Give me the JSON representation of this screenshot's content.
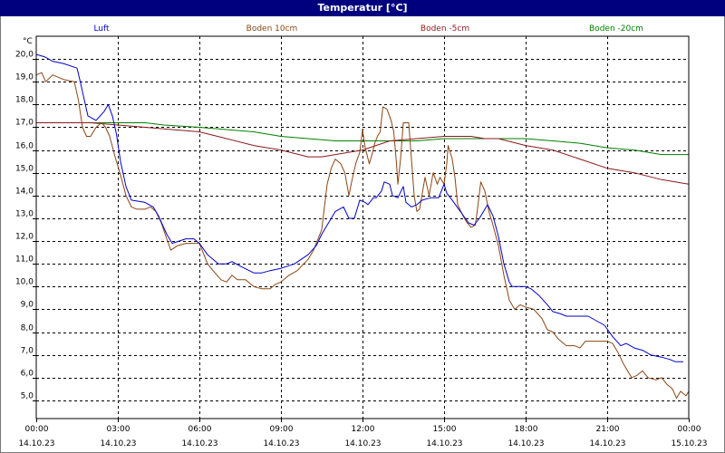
{
  "window": {
    "title": "Temperatur [°C]"
  },
  "chart_data": {
    "type": "line",
    "title": "Temperatur [°C]",
    "ylabel": "°C",
    "xlabel": "",
    "ylim": [
      4.2,
      21.0
    ],
    "xlim_hours": [
      0,
      24
    ],
    "grid": true,
    "legend_position": "top",
    "x_ticks": [
      {
        "time": "00:00",
        "date": "14.10.23"
      },
      {
        "time": "03:00",
        "date": "14.10.23"
      },
      {
        "time": "06:00",
        "date": "14.10.23"
      },
      {
        "time": "09:00",
        "date": "14.10.23"
      },
      {
        "time": "12:00",
        "date": "14.10.23"
      },
      {
        "time": "15:00",
        "date": "14.10.23"
      },
      {
        "time": "18:00",
        "date": "14.10.23"
      },
      {
        "time": "21:00",
        "date": "14.10.23"
      },
      {
        "time": "00:00",
        "date": "15.10.23"
      }
    ],
    "y_ticks": [
      "5,0",
      "6,0",
      "7,0",
      "8,0",
      "9,0",
      "10,0",
      "11,0",
      "12,0",
      "13,0",
      "14,0",
      "15,0",
      "16,0",
      "17,0",
      "18,0",
      "19,0",
      "20,0"
    ],
    "series": [
      {
        "name": "Luft",
        "color": "#0000cc",
        "points": [
          [
            0,
            20.2
          ],
          [
            0.3,
            20.1
          ],
          [
            0.6,
            19.9
          ],
          [
            1.0,
            19.8
          ],
          [
            1.5,
            19.6
          ],
          [
            1.6,
            19.1
          ],
          [
            1.75,
            18.3
          ],
          [
            1.9,
            17.5
          ],
          [
            2.2,
            17.3
          ],
          [
            2.5,
            17.7
          ],
          [
            2.65,
            18.0
          ],
          [
            2.8,
            17.5
          ],
          [
            2.95,
            16.7
          ],
          [
            3.1,
            15.5
          ],
          [
            3.3,
            14.4
          ],
          [
            3.5,
            13.8
          ],
          [
            4.0,
            13.7
          ],
          [
            4.3,
            13.5
          ],
          [
            4.5,
            13.1
          ],
          [
            4.8,
            12.3
          ],
          [
            5.0,
            11.9
          ],
          [
            5.5,
            12.1
          ],
          [
            5.8,
            12.1
          ],
          [
            6.0,
            11.9
          ],
          [
            6.3,
            11.4
          ],
          [
            6.7,
            11.0
          ],
          [
            7.0,
            11.0
          ],
          [
            7.2,
            11.1
          ],
          [
            7.5,
            10.9
          ],
          [
            8.0,
            10.6
          ],
          [
            8.3,
            10.6
          ],
          [
            8.6,
            10.7
          ],
          [
            9.0,
            10.8
          ],
          [
            9.5,
            11.0
          ],
          [
            10.0,
            11.4
          ],
          [
            10.3,
            11.8
          ],
          [
            10.5,
            12.3
          ],
          [
            10.8,
            12.9
          ],
          [
            11.0,
            13.3
          ],
          [
            11.3,
            13.5
          ],
          [
            11.5,
            13.0
          ],
          [
            11.7,
            13.0
          ],
          [
            11.9,
            13.8
          ],
          [
            12.1,
            13.7
          ],
          [
            12.2,
            13.6
          ],
          [
            12.4,
            13.9
          ],
          [
            12.5,
            13.9
          ],
          [
            12.7,
            14.2
          ],
          [
            12.8,
            14.6
          ],
          [
            13.0,
            14.5
          ],
          [
            13.1,
            14.0
          ],
          [
            13.3,
            13.9
          ],
          [
            13.5,
            14.4
          ],
          [
            13.6,
            13.7
          ],
          [
            13.8,
            13.5
          ],
          [
            14.0,
            13.6
          ],
          [
            14.2,
            13.8
          ],
          [
            14.5,
            13.9
          ],
          [
            14.8,
            13.9
          ],
          [
            15.0,
            14.5
          ],
          [
            15.1,
            14.1
          ],
          [
            15.3,
            13.8
          ],
          [
            15.6,
            13.3
          ],
          [
            15.9,
            12.8
          ],
          [
            16.1,
            12.7
          ],
          [
            16.3,
            13.0
          ],
          [
            16.6,
            13.6
          ],
          [
            16.8,
            13.1
          ],
          [
            17.0,
            12.2
          ],
          [
            17.2,
            11.0
          ],
          [
            17.4,
            10.2
          ],
          [
            17.5,
            10.0
          ],
          [
            18.0,
            10.0
          ],
          [
            18.2,
            9.9
          ],
          [
            18.5,
            9.6
          ],
          [
            18.8,
            9.2
          ],
          [
            19.0,
            8.9
          ],
          [
            19.3,
            8.8
          ],
          [
            19.5,
            8.7
          ],
          [
            20.0,
            8.7
          ],
          [
            20.3,
            8.7
          ],
          [
            20.6,
            8.5
          ],
          [
            20.9,
            8.3
          ],
          [
            21.2,
            7.8
          ],
          [
            21.5,
            7.4
          ],
          [
            21.7,
            7.5
          ],
          [
            22.0,
            7.3
          ],
          [
            22.3,
            7.2
          ],
          [
            22.6,
            7.0
          ],
          [
            23.0,
            6.9
          ],
          [
            23.3,
            6.8
          ],
          [
            23.5,
            6.7
          ],
          [
            23.8,
            6.7
          ]
        ]
      },
      {
        "name": "Boden 10cm",
        "color": "#8b4513",
        "points": [
          [
            0,
            19.3
          ],
          [
            0.2,
            19.4
          ],
          [
            0.35,
            19.0
          ],
          [
            0.6,
            19.3
          ],
          [
            1.0,
            19.1
          ],
          [
            1.4,
            19.0
          ],
          [
            1.55,
            18.2
          ],
          [
            1.7,
            17.0
          ],
          [
            1.85,
            16.6
          ],
          [
            2.0,
            16.6
          ],
          [
            2.2,
            17.0
          ],
          [
            2.4,
            17.2
          ],
          [
            2.55,
            17.0
          ],
          [
            2.7,
            16.6
          ],
          [
            2.9,
            15.7
          ],
          [
            3.1,
            14.9
          ],
          [
            3.3,
            14.0
          ],
          [
            3.5,
            13.5
          ],
          [
            3.7,
            13.4
          ],
          [
            4.0,
            13.4
          ],
          [
            4.2,
            13.5
          ],
          [
            4.4,
            13.3
          ],
          [
            4.6,
            12.8
          ],
          [
            4.8,
            12.1
          ],
          [
            4.95,
            11.6
          ],
          [
            5.2,
            11.8
          ],
          [
            5.5,
            11.9
          ],
          [
            6.0,
            11.9
          ],
          [
            6.1,
            11.6
          ],
          [
            6.3,
            11.0
          ],
          [
            6.5,
            10.7
          ],
          [
            6.8,
            10.3
          ],
          [
            7.0,
            10.2
          ],
          [
            7.2,
            10.5
          ],
          [
            7.4,
            10.3
          ],
          [
            7.7,
            10.3
          ],
          [
            8.0,
            10.0
          ],
          [
            8.3,
            9.9
          ],
          [
            8.6,
            9.9
          ],
          [
            8.8,
            10.1
          ],
          [
            9.0,
            10.2
          ],
          [
            9.3,
            10.5
          ],
          [
            9.6,
            10.7
          ],
          [
            10.0,
            11.2
          ],
          [
            10.2,
            11.6
          ],
          [
            10.5,
            12.5
          ],
          [
            10.6,
            13.5
          ],
          [
            10.7,
            14.5
          ],
          [
            10.85,
            15.2
          ],
          [
            11.0,
            15.6
          ],
          [
            11.2,
            15.4
          ],
          [
            11.35,
            15.0
          ],
          [
            11.5,
            14.0
          ],
          [
            11.6,
            14.6
          ],
          [
            11.75,
            15.4
          ],
          [
            11.9,
            15.9
          ],
          [
            12.0,
            16.9
          ],
          [
            12.1,
            16.1
          ],
          [
            12.25,
            15.4
          ],
          [
            12.35,
            15.8
          ],
          [
            12.45,
            16.3
          ],
          [
            12.55,
            16.6
          ],
          [
            12.65,
            16.8
          ],
          [
            12.75,
            17.9
          ],
          [
            12.9,
            17.8
          ],
          [
            13.05,
            17.3
          ],
          [
            13.15,
            16.8
          ],
          [
            13.25,
            15.4
          ],
          [
            13.3,
            14.5
          ],
          [
            13.4,
            15.6
          ],
          [
            13.5,
            17.2
          ],
          [
            13.7,
            17.2
          ],
          [
            13.8,
            15.6
          ],
          [
            13.9,
            14.0
          ],
          [
            14.0,
            13.3
          ],
          [
            14.1,
            13.4
          ],
          [
            14.2,
            14.1
          ],
          [
            14.3,
            14.8
          ],
          [
            14.45,
            14.0
          ],
          [
            14.6,
            15.0
          ],
          [
            14.75,
            14.5
          ],
          [
            14.85,
            14.8
          ],
          [
            15.0,
            14.5
          ],
          [
            15.1,
            15.4
          ],
          [
            15.15,
            16.2
          ],
          [
            15.3,
            15.6
          ],
          [
            15.4,
            14.8
          ],
          [
            15.5,
            13.6
          ],
          [
            15.7,
            13.1
          ],
          [
            15.85,
            12.8
          ],
          [
            16.0,
            12.6
          ],
          [
            16.15,
            12.7
          ],
          [
            16.25,
            13.6
          ],
          [
            16.35,
            14.6
          ],
          [
            16.5,
            14.2
          ],
          [
            16.65,
            13.3
          ],
          [
            16.8,
            12.7
          ],
          [
            17.0,
            11.8
          ],
          [
            17.2,
            10.5
          ],
          [
            17.4,
            9.4
          ],
          [
            17.6,
            9.0
          ],
          [
            17.8,
            9.2
          ],
          [
            18.0,
            9.1
          ],
          [
            18.3,
            9.0
          ],
          [
            18.6,
            8.6
          ],
          [
            18.8,
            8.1
          ],
          [
            19.0,
            8.0
          ],
          [
            19.2,
            7.7
          ],
          [
            19.5,
            7.4
          ],
          [
            19.8,
            7.4
          ],
          [
            20.0,
            7.3
          ],
          [
            20.2,
            7.6
          ],
          [
            20.5,
            7.6
          ],
          [
            21.0,
            7.6
          ],
          [
            21.2,
            7.5
          ],
          [
            21.4,
            7.1
          ],
          [
            21.6,
            6.6
          ],
          [
            21.8,
            6.2
          ],
          [
            21.9,
            6.0
          ],
          [
            22.1,
            6.1
          ],
          [
            22.3,
            6.3
          ],
          [
            22.5,
            6.0
          ],
          [
            22.8,
            5.9
          ],
          [
            23.0,
            6.0
          ],
          [
            23.2,
            5.7
          ],
          [
            23.4,
            5.5
          ],
          [
            23.55,
            5.1
          ],
          [
            23.7,
            5.4
          ],
          [
            23.9,
            5.2
          ],
          [
            24.0,
            5.4
          ]
        ]
      },
      {
        "name": "Boden -5cm",
        "color": "#8b1a1a",
        "points": [
          [
            0,
            17.2
          ],
          [
            1.0,
            17.2
          ],
          [
            2.0,
            17.2
          ],
          [
            3.0,
            17.1
          ],
          [
            4.0,
            17.0
          ],
          [
            5.0,
            16.9
          ],
          [
            6.0,
            16.8
          ],
          [
            7.0,
            16.5
          ],
          [
            8.0,
            16.2
          ],
          [
            9.0,
            16.0
          ],
          [
            10.0,
            15.7
          ],
          [
            10.5,
            15.7
          ],
          [
            11.0,
            15.8
          ],
          [
            11.5,
            15.9
          ],
          [
            12.0,
            16.0
          ],
          [
            12.5,
            16.2
          ],
          [
            13.0,
            16.4
          ],
          [
            14.0,
            16.5
          ],
          [
            15.0,
            16.6
          ],
          [
            16.0,
            16.6
          ],
          [
            16.5,
            16.5
          ],
          [
            17.0,
            16.5
          ],
          [
            18.0,
            16.2
          ],
          [
            19.0,
            16.0
          ],
          [
            20.0,
            15.6
          ],
          [
            21.0,
            15.2
          ],
          [
            22.0,
            15.0
          ],
          [
            23.0,
            14.7
          ],
          [
            24.0,
            14.5
          ]
        ]
      },
      {
        "name": "Boden -20cm",
        "color": "#007f00",
        "points": [
          [
            0,
            17.2
          ],
          [
            2.0,
            17.2
          ],
          [
            4.0,
            17.2
          ],
          [
            4.7,
            17.1
          ],
          [
            6.0,
            17.0
          ],
          [
            7.0,
            16.9
          ],
          [
            8.0,
            16.8
          ],
          [
            9.0,
            16.6
          ],
          [
            10.0,
            16.5
          ],
          [
            11.0,
            16.4
          ],
          [
            12.0,
            16.4
          ],
          [
            13.0,
            16.4
          ],
          [
            14.0,
            16.4
          ],
          [
            15.0,
            16.5
          ],
          [
            16.0,
            16.5
          ],
          [
            17.0,
            16.5
          ],
          [
            18.0,
            16.5
          ],
          [
            19.0,
            16.4
          ],
          [
            20.0,
            16.3
          ],
          [
            21.0,
            16.1
          ],
          [
            22.0,
            16.0
          ],
          [
            23.0,
            15.8
          ],
          [
            24.0,
            15.8
          ]
        ]
      }
    ]
  }
}
